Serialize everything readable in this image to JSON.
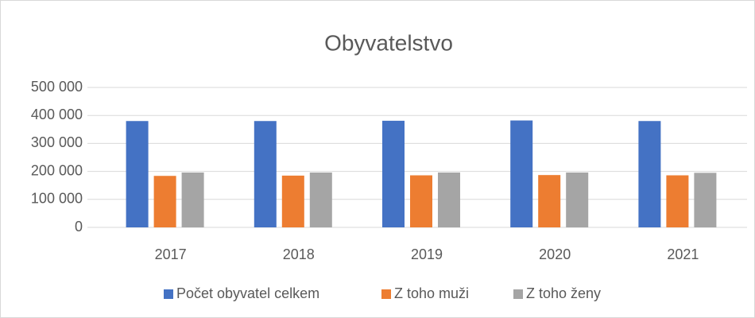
{
  "chart_data": {
    "type": "bar",
    "title": "Obyvatelstvo",
    "categories": [
      "2017",
      "2018",
      "2019",
      "2020",
      "2021"
    ],
    "series": [
      {
        "name": "Počet obyvatel celkem",
        "color": "#4472c4",
        "values": [
          380000,
          380000,
          381000,
          382000,
          380000
        ]
      },
      {
        "name": "Z toho muži",
        "color": "#ed7d31",
        "values": [
          184000,
          185000,
          186000,
          187000,
          186000
        ]
      },
      {
        "name": "Z toho ženy",
        "color": "#a5a5a5",
        "values": [
          196000,
          196000,
          196000,
          196000,
          195000
        ]
      }
    ],
    "ylim": [
      0,
      500000
    ],
    "yticks": [
      {
        "value": 0,
        "label": "0"
      },
      {
        "value": 100000,
        "label": "100 000"
      },
      {
        "value": 200000,
        "label": "200 000"
      },
      {
        "value": 300000,
        "label": "300 000"
      },
      {
        "value": 400000,
        "label": "400 000"
      },
      {
        "value": 500000,
        "label": "500 000"
      }
    ],
    "grid": true,
    "legend": "bottom"
  }
}
